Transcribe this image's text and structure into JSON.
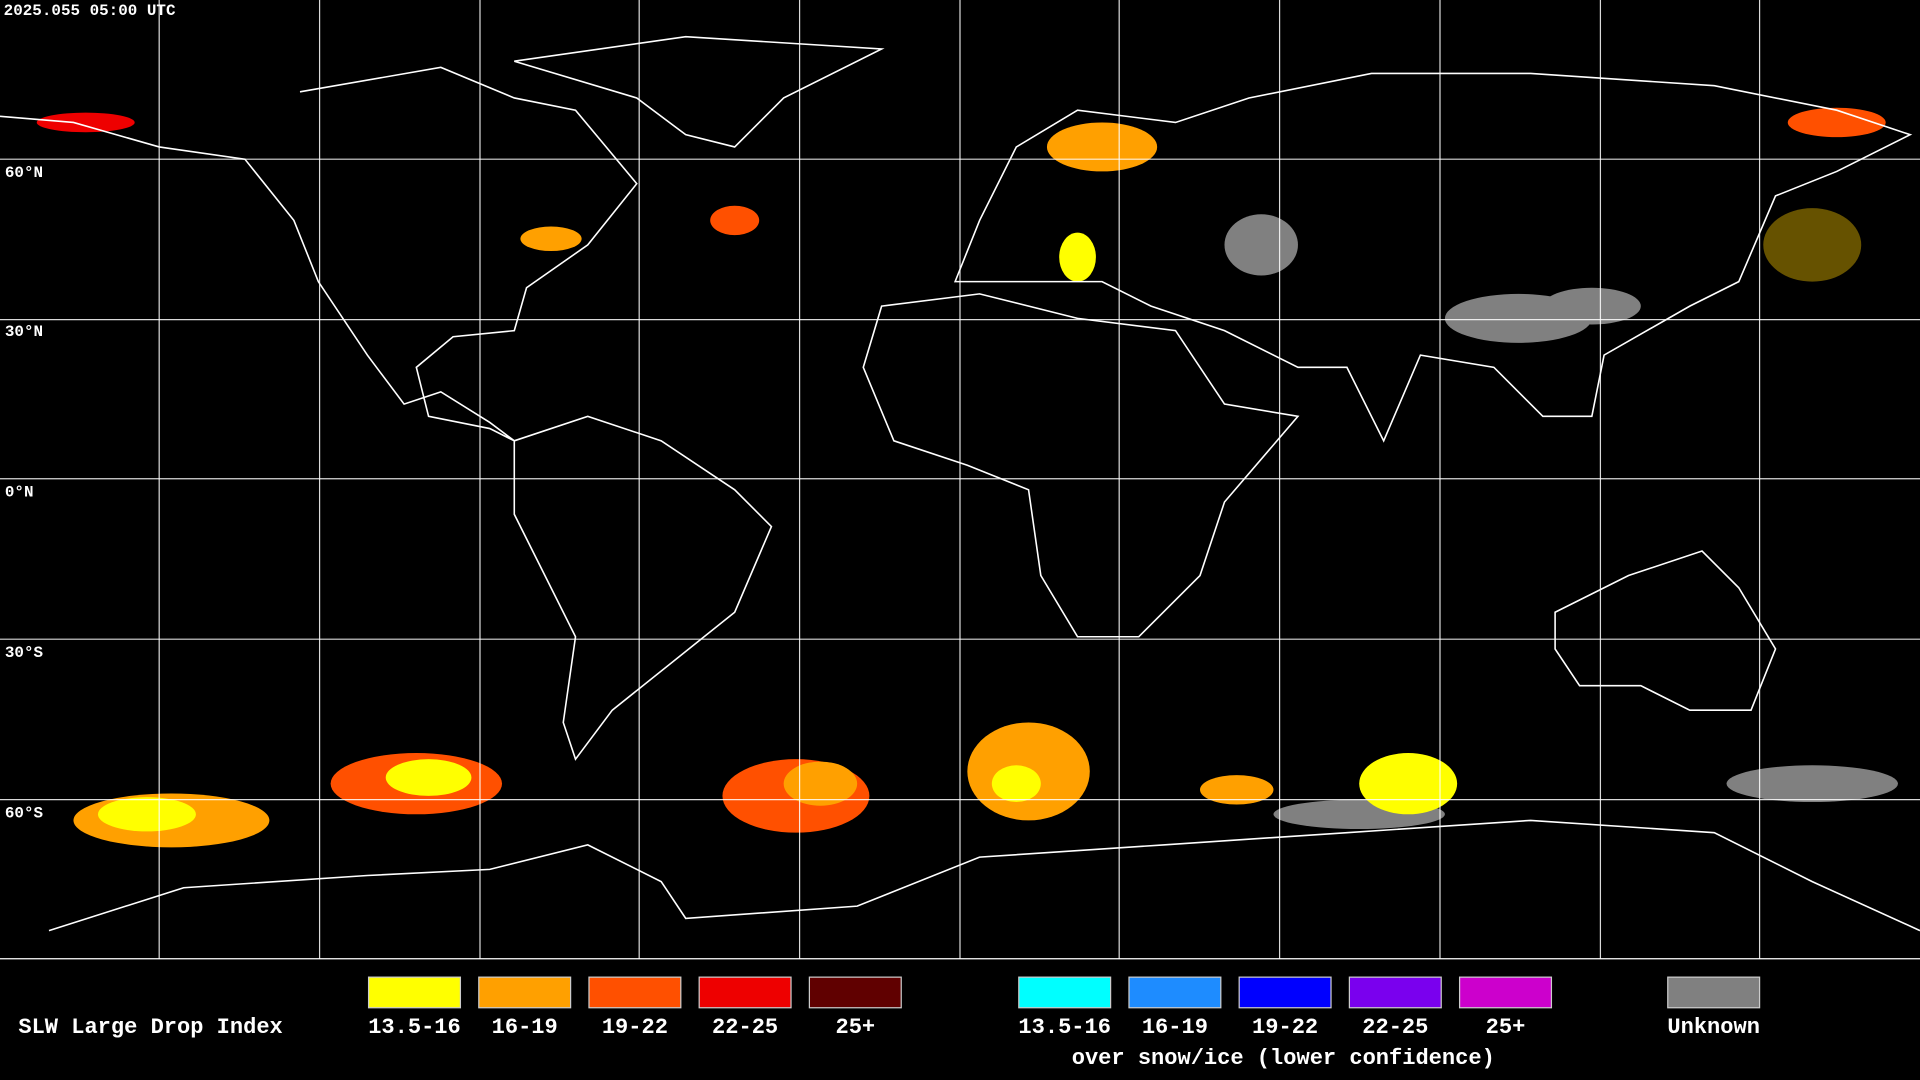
{
  "header": {
    "timestamp": "2025.055 05:00 UTC"
  },
  "map": {
    "latitude_labels": [
      "60°N",
      "30°N",
      "0°N",
      "30°S",
      "60°S"
    ]
  },
  "legend": {
    "title": "SLW Large Drop Index",
    "items": [
      {
        "label": "13.5-16",
        "color": "#ffff00"
      },
      {
        "label": "16-19",
        "color": "#ffa000"
      },
      {
        "label": "19-22",
        "color": "#ff5000"
      },
      {
        "label": "22-25",
        "color": "#ee0000"
      },
      {
        "label": "25+",
        "color": "#600000"
      }
    ],
    "snow_items": [
      {
        "label": "13.5-16",
        "color": "#00ffff"
      },
      {
        "label": "16-19",
        "color": "#1e8cff"
      },
      {
        "label": "19-22",
        "color": "#0000ff"
      },
      {
        "label": "22-25",
        "color": "#7a00ee"
      },
      {
        "label": "25+",
        "color": "#cc00cc"
      }
    ],
    "snow_caption": "over snow/ice (lower confidence)",
    "unknown": {
      "label": "Unknown",
      "color": "#808080"
    }
  }
}
